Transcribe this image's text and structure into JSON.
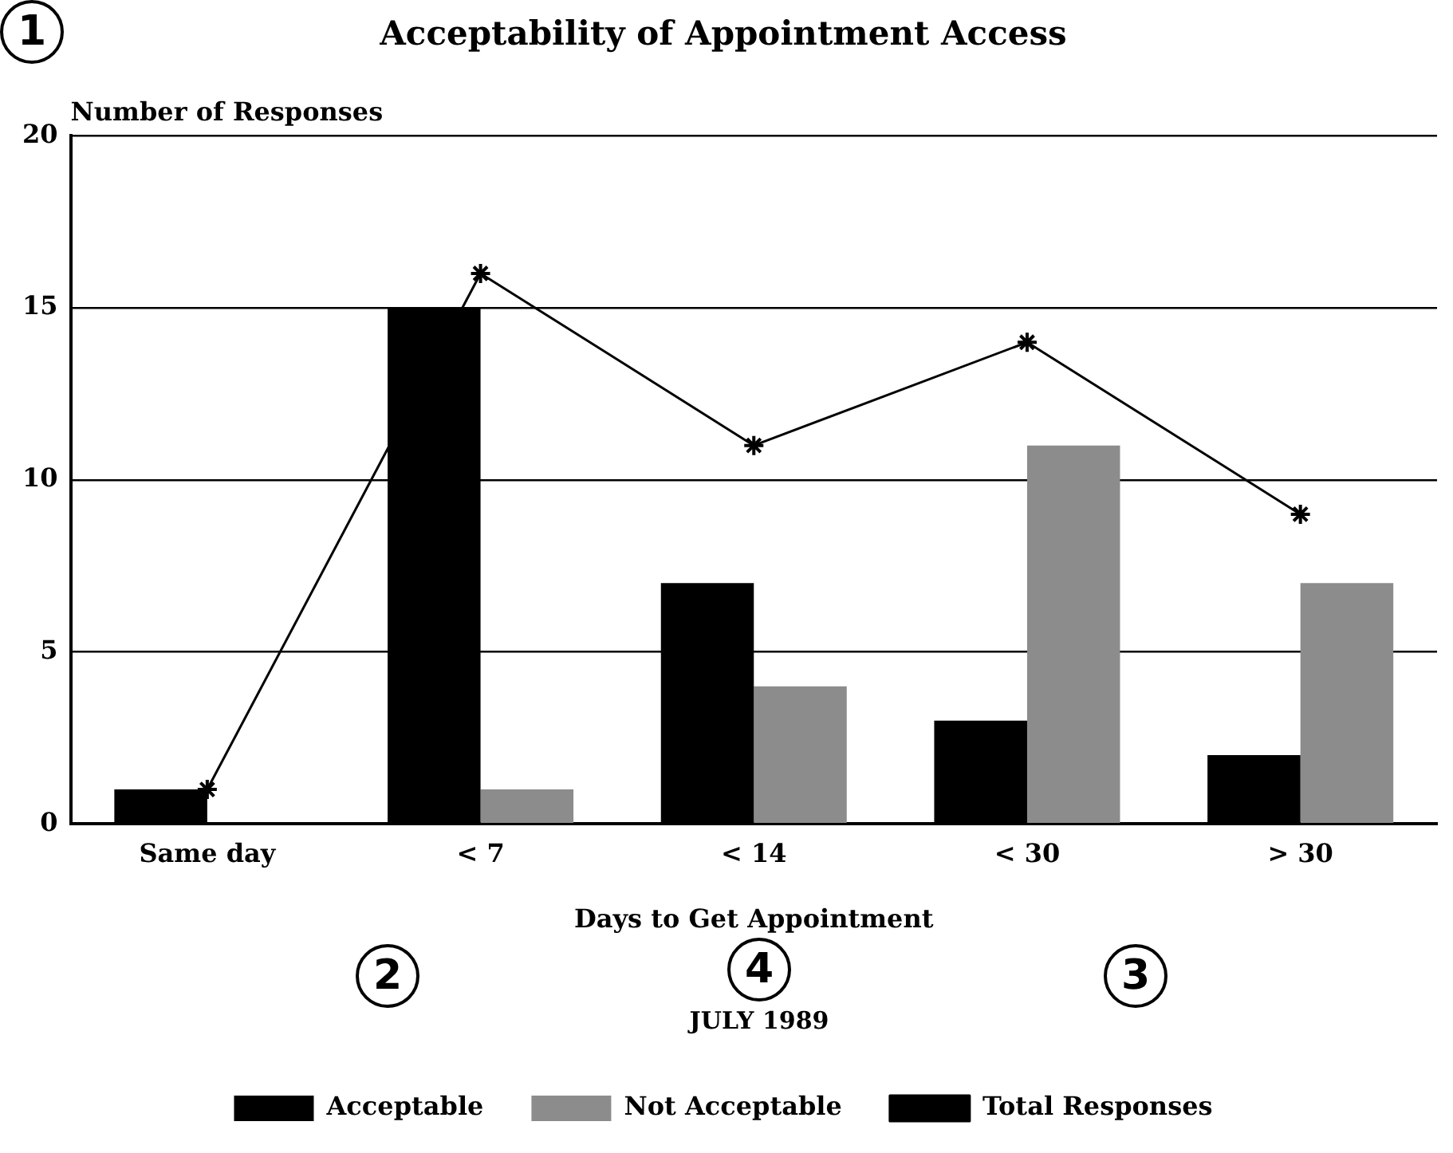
{
  "chart_data": {
    "type": "bar",
    "title": "Acceptability of Appointment Access",
    "xlabel": "Days to Get Appointment",
    "ylabel": "Number of Responses",
    "categories": [
      "Same day",
      "< 7",
      "< 14",
      "< 30",
      "> 30"
    ],
    "series": [
      {
        "name": "Acceptable",
        "color": "#000000",
        "values": [
          1,
          15,
          7,
          3,
          2
        ]
      },
      {
        "name": "Not Acceptable",
        "color": "#8c8c8c",
        "values": [
          0,
          1,
          4,
          11,
          7
        ]
      },
      {
        "name": "Total Responses",
        "type": "line",
        "color": "#000000",
        "values": [
          1,
          16,
          11,
          14,
          9
        ]
      }
    ],
    "ylim": [
      0,
      20
    ],
    "yticks": [
      0,
      5,
      10,
      15,
      20
    ],
    "grid": "y",
    "legend": "bottom",
    "marker": "cross",
    "line_style": "solid",
    "annotations": [
      "1",
      "2",
      "3",
      "4",
      "JULY 1989"
    ]
  }
}
